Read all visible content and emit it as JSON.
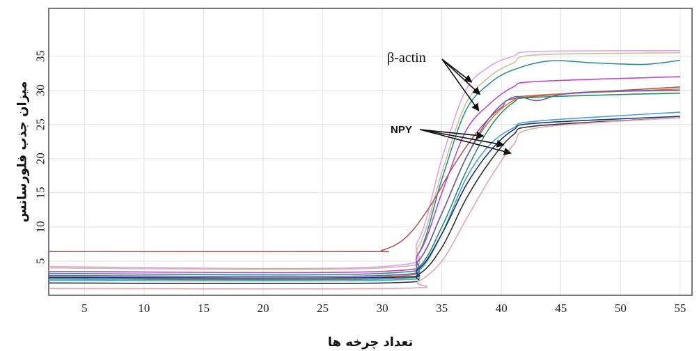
{
  "chart_data": {
    "type": "line",
    "title": "",
    "xlabel": "تعداد چرخه ها",
    "ylabel": "میزان جذب فلورسانس",
    "xlim": [
      2,
      56
    ],
    "ylim": [
      0,
      42
    ],
    "xticks": [
      5,
      10,
      15,
      20,
      25,
      30,
      35,
      40,
      45,
      50,
      55
    ],
    "yticks": [
      5,
      10,
      15,
      20,
      25,
      30,
      35
    ],
    "grid": true,
    "legend": "none",
    "annotations": [
      {
        "label": "β-actin",
        "points_to": [
          [
            37.5,
            31.2
          ],
          [
            38.2,
            29.4
          ],
          [
            38.1,
            27.0
          ]
        ]
      },
      {
        "label": "NPY",
        "points_to": [
          [
            38.5,
            23.3
          ],
          [
            40.2,
            22.0
          ],
          [
            40.8,
            20.8
          ]
        ]
      }
    ],
    "series": [
      {
        "color": "#e0a0e8",
        "x": [
          2,
          30,
          33,
          35,
          37,
          39,
          41,
          43,
          55
        ],
        "y": [
          4.2,
          4.2,
          8,
          20,
          30,
          33.5,
          35,
          35.7,
          35.8
        ]
      },
      {
        "color": "#c8c098",
        "x": [
          2,
          30,
          33,
          35,
          37,
          39,
          41,
          43,
          55
        ],
        "y": [
          4.0,
          4.0,
          7,
          18,
          28,
          32,
          34,
          35.2,
          35.5
        ]
      },
      {
        "color": "#2f8f88",
        "x": [
          2,
          30,
          33,
          35,
          37,
          39,
          41,
          44,
          48,
          52,
          55
        ],
        "y": [
          3.2,
          3.2,
          6,
          17,
          27,
          31,
          33,
          34.3,
          34.0,
          33.8,
          34.4
        ]
      },
      {
        "color": "#b84ac8",
        "x": [
          2,
          30,
          33,
          35,
          37,
          39,
          41,
          43,
          55
        ],
        "y": [
          3.5,
          3.5,
          6,
          15,
          24,
          28,
          30.5,
          31.3,
          32.0
        ]
      },
      {
        "color": "#b05858",
        "x": [
          2,
          28,
          30,
          32,
          34,
          36,
          38,
          40,
          42,
          55
        ],
        "y": [
          6.4,
          6.4,
          6.6,
          8.5,
          13,
          19,
          24,
          27.5,
          29,
          30.5
        ]
      },
      {
        "color": "#c08040",
        "x": [
          2,
          30,
          33,
          35,
          37,
          39,
          41,
          43,
          55
        ],
        "y": [
          2.7,
          2.7,
          5,
          12,
          20,
          25.5,
          28.5,
          29.3,
          30.2
        ]
      },
      {
        "color": "#6a5ab8",
        "x": [
          2,
          30,
          33,
          35,
          37,
          39,
          41,
          43,
          45,
          48,
          55
        ],
        "y": [
          2.9,
          2.9,
          5,
          12,
          20,
          26,
          29,
          28.5,
          29.4,
          29.8,
          30.0
        ]
      },
      {
        "color": "#2a8a70",
        "x": [
          2,
          30,
          33,
          35,
          37,
          39,
          41,
          43,
          55
        ],
        "y": [
          2.4,
          2.4,
          4,
          10,
          18,
          24.5,
          28.2,
          29.0,
          29.6
        ]
      },
      {
        "color": "#4aa0d0",
        "x": [
          2,
          30,
          33,
          35,
          37,
          39,
          41,
          43,
          55
        ],
        "y": [
          2.2,
          2.2,
          3.5,
          9,
          17,
          22,
          24.5,
          25.5,
          26.8
        ]
      },
      {
        "color": "#203070",
        "x": [
          2,
          30,
          33,
          35,
          37,
          39,
          41,
          43,
          55
        ],
        "y": [
          2.6,
          2.6,
          3.8,
          9,
          16,
          21,
          24.2,
          25.2,
          26.2
        ]
      },
      {
        "color": "#303030",
        "x": [
          2,
          30,
          33,
          35,
          37,
          39,
          41,
          43,
          55
        ],
        "y": [
          1.8,
          1.8,
          3,
          7,
          14,
          19.5,
          23.5,
          24.8,
          26.0
        ]
      },
      {
        "color": "#e0a8b0",
        "x": [
          2,
          31,
          33,
          35,
          37,
          39,
          41,
          43,
          55
        ],
        "y": [
          1.0,
          1.0,
          2,
          5,
          11,
          17,
          22,
          24.5,
          26.0
        ]
      }
    ]
  }
}
